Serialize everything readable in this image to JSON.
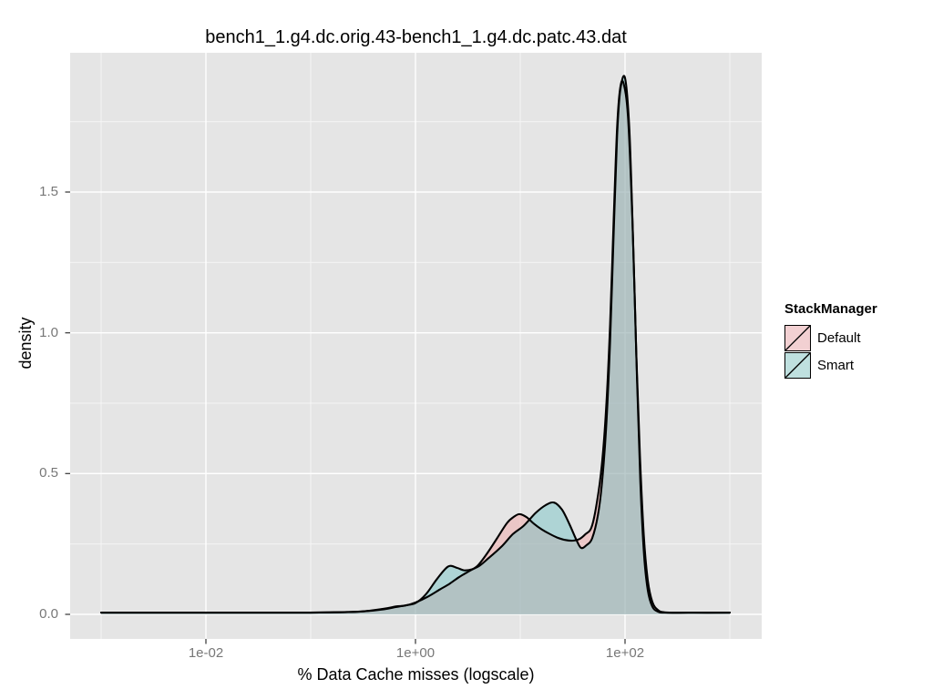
{
  "chart_data": {
    "type": "area",
    "subtype": "density",
    "title": "bench1_1.g4.dc.orig.43-bench1_1.g4.dc.patc.43.dat",
    "xlabel": "% Data Cache misses (logscale)",
    "ylabel": "density",
    "x_scale": "log10",
    "x_range": [
      0.0005,
      2000
    ],
    "ylim": [
      -0.095,
      1.995
    ],
    "grid": "on",
    "legend_position": "right",
    "x_ticks": [
      {
        "value": 0.01,
        "label": "1e-02"
      },
      {
        "value": 1.0,
        "label": "1e+00"
      },
      {
        "value": 100.0,
        "label": "1e+02"
      }
    ],
    "x_minor_ticks": [
      0.001,
      0.1,
      10,
      1000
    ],
    "y_ticks": [
      "0.0",
      "0.5",
      "1.0",
      "1.5"
    ],
    "y_minor_ticks": [
      0.25,
      0.75,
      1.25,
      1.75
    ],
    "panel_color": "#E5E5E5",
    "gridline_color": "#FFFFFF",
    "legend": {
      "title": "StackManager",
      "entries": [
        {
          "label": "Default",
          "swatch_fill": "#F2D0D2"
        },
        {
          "label": "Smart",
          "swatch_fill": "#BFE0DF"
        }
      ]
    },
    "series": [
      {
        "name": "Default",
        "stroke": "#000000",
        "fill": "rgba(244,154,154,0.42)",
        "points": [
          [
            0.001,
            0.006
          ],
          [
            0.01,
            0.006
          ],
          [
            0.06,
            0.006
          ],
          [
            0.15,
            0.007
          ],
          [
            0.3,
            0.01
          ],
          [
            0.5,
            0.02
          ],
          [
            0.65,
            0.028
          ],
          [
            0.8,
            0.031
          ],
          [
            1.0,
            0.042
          ],
          [
            1.3,
            0.062
          ],
          [
            1.7,
            0.088
          ],
          [
            2.1,
            0.108
          ],
          [
            2.6,
            0.132
          ],
          [
            3.2,
            0.152
          ],
          [
            3.9,
            0.172
          ],
          [
            4.8,
            0.215
          ],
          [
            6.0,
            0.27
          ],
          [
            7.5,
            0.325
          ],
          [
            8.8,
            0.348
          ],
          [
            9.9,
            0.356
          ],
          [
            11.5,
            0.345
          ],
          [
            13.5,
            0.322
          ],
          [
            16.0,
            0.302
          ],
          [
            19.0,
            0.286
          ],
          [
            22.5,
            0.273
          ],
          [
            27.0,
            0.264
          ],
          [
            32.0,
            0.262
          ],
          [
            37.0,
            0.268
          ],
          [
            42.0,
            0.285
          ],
          [
            48.0,
            0.31
          ],
          [
            54.0,
            0.4
          ],
          [
            60.0,
            0.53
          ],
          [
            66.0,
            0.73
          ],
          [
            72.0,
            1.03
          ],
          [
            78.0,
            1.41
          ],
          [
            84.0,
            1.73
          ],
          [
            90.0,
            1.87
          ],
          [
            97.0,
            1.885
          ],
          [
            107.0,
            1.76
          ],
          [
            118.0,
            1.38
          ],
          [
            128.0,
            0.93
          ],
          [
            139.0,
            0.56
          ],
          [
            151.0,
            0.28
          ],
          [
            165.0,
            0.12
          ],
          [
            182.0,
            0.045
          ],
          [
            205.0,
            0.016
          ],
          [
            240.0,
            0.007
          ],
          [
            400.0,
            0.006
          ],
          [
            1000.0,
            0.006
          ]
        ]
      },
      {
        "name": "Smart",
        "stroke": "#000000",
        "fill": "rgba(92,188,189,0.40)",
        "points": [
          [
            0.001,
            0.006
          ],
          [
            0.01,
            0.006
          ],
          [
            0.06,
            0.006
          ],
          [
            0.15,
            0.007
          ],
          [
            0.3,
            0.01
          ],
          [
            0.5,
            0.018
          ],
          [
            0.65,
            0.026
          ],
          [
            0.8,
            0.032
          ],
          [
            1.0,
            0.04
          ],
          [
            1.25,
            0.07
          ],
          [
            1.6,
            0.125
          ],
          [
            2.05,
            0.17
          ],
          [
            2.5,
            0.165
          ],
          [
            3.0,
            0.156
          ],
          [
            3.9,
            0.168
          ],
          [
            5.0,
            0.2
          ],
          [
            6.6,
            0.24
          ],
          [
            8.5,
            0.285
          ],
          [
            10.8,
            0.315
          ],
          [
            14.0,
            0.36
          ],
          [
            17.5,
            0.388
          ],
          [
            21.0,
            0.397
          ],
          [
            25.0,
            0.372
          ],
          [
            29.5,
            0.32
          ],
          [
            34.0,
            0.268
          ],
          [
            38.0,
            0.236
          ],
          [
            43.0,
            0.246
          ],
          [
            48.5,
            0.27
          ],
          [
            55.0,
            0.35
          ],
          [
            60.0,
            0.46
          ],
          [
            66.0,
            0.66
          ],
          [
            72.0,
            0.97
          ],
          [
            78.0,
            1.36
          ],
          [
            84.0,
            1.7
          ],
          [
            90.0,
            1.86
          ],
          [
            100.0,
            1.905
          ],
          [
            110.0,
            1.72
          ],
          [
            120.0,
            1.3
          ],
          [
            130.0,
            0.84
          ],
          [
            140.0,
            0.47
          ],
          [
            152.0,
            0.21
          ],
          [
            165.0,
            0.085
          ],
          [
            182.0,
            0.028
          ],
          [
            205.0,
            0.01
          ],
          [
            240.0,
            0.006
          ],
          [
            400.0,
            0.006
          ],
          [
            1000.0,
            0.006
          ]
        ]
      }
    ]
  }
}
